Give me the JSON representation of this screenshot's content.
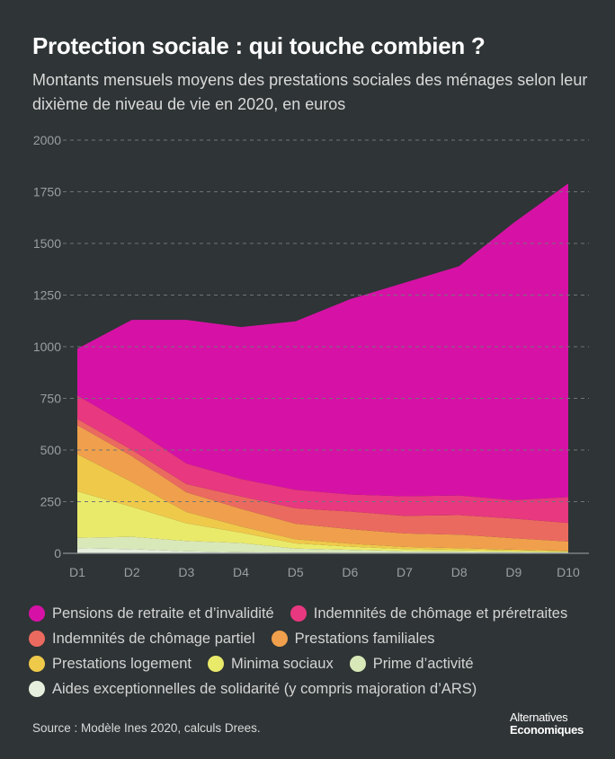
{
  "title": "Protection sociale : qui touche combien ?",
  "subtitle": "Montants mensuels moyens des prestations sociales des ménages selon leur dixième de niveau de vie en 2020, en euros",
  "source": "Source : Modèle Ines 2020, calculs Drees.",
  "logo": {
    "line1": "Alternatives",
    "line2": "Economiques"
  },
  "chart_data": {
    "type": "area",
    "stacked": true,
    "categories": [
      "D1",
      "D2",
      "D3",
      "D4",
      "D5",
      "D6",
      "D7",
      "D8",
      "D9",
      "D10"
    ],
    "yticks": [
      "0",
      "250",
      "500",
      "750",
      "1000",
      "1250",
      "1500",
      "1750",
      "2000"
    ],
    "ylim": [
      0,
      2000
    ],
    "grid": true,
    "series": [
      {
        "name": "Aides exceptionnelles de solidarité (y compris majoration d’ARS)",
        "color": "#e6eedd",
        "values": [
          25,
          20,
          10,
          5,
          3,
          2,
          1,
          1,
          1,
          1
        ]
      },
      {
        "name": "Prime d’activité",
        "color": "#d9e8b8",
        "values": [
          50,
          60,
          50,
          45,
          20,
          15,
          10,
          8,
          6,
          4
        ]
      },
      {
        "name": "Minima sociaux",
        "color": "#eaea6a",
        "values": [
          225,
          145,
          85,
          50,
          25,
          15,
          10,
          8,
          6,
          4
        ]
      },
      {
        "name": "Prestations logement",
        "color": "#efc94a",
        "values": [
          180,
          120,
          55,
          30,
          20,
          15,
          10,
          8,
          5,
          3
        ]
      },
      {
        "name": "Prestations familiales",
        "color": "#f0a04c",
        "values": [
          140,
          125,
          95,
          85,
          75,
          70,
          65,
          65,
          55,
          45
        ]
      },
      {
        "name": "Indemnités de chômage partiel",
        "color": "#eb6a5f",
        "values": [
          30,
          30,
          40,
          60,
          75,
          85,
          85,
          95,
          95,
          90
        ]
      },
      {
        "name": "Indemnités de chômage et préretraites",
        "color": "#e8387f",
        "values": [
          115,
          110,
          100,
          85,
          90,
          83,
          95,
          95,
          90,
          125
        ]
      },
      {
        "name": "Pensions de retraite et d’invalidité",
        "color": "#d612a6",
        "values": [
          225,
          520,
          695,
          735,
          815,
          945,
          1034,
          1110,
          1342,
          1518
        ]
      }
    ]
  },
  "legend": [
    {
      "label": "Pensions de retraite et d’invalidité",
      "color": "#d612a6"
    },
    {
      "label": "Indemnités de chômage et préretraites",
      "color": "#e8387f"
    },
    {
      "label": "Indemnités de chômage partiel",
      "color": "#eb6a5f"
    },
    {
      "label": "Prestations familiales",
      "color": "#f0a04c"
    },
    {
      "label": "Prestations logement",
      "color": "#efc94a"
    },
    {
      "label": "Minima sociaux",
      "color": "#eaea6a"
    },
    {
      "label": "Prime d’activité",
      "color": "#d9e8b8"
    },
    {
      "label": "Aides exceptionnelles de solidarité (y compris majoration d’ARS)",
      "color": "#e6eedd"
    }
  ]
}
